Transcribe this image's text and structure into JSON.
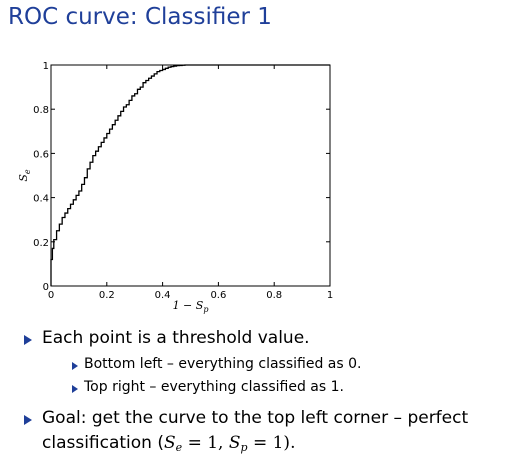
{
  "slide": {
    "title": "ROC curve: Classifier 1"
  },
  "bullets": {
    "b1": "Each point is a threshold value.",
    "b1_sub1": "Bottom left – everything classified as 0.",
    "b1_sub2": "Top right – everything classified as 1.",
    "b2_line1": "Goal: get the curve to the top left corner – perfect",
    "b2_line2_prefix": "classification (",
    "b2_se": "S",
    "b2_se_sub": "e",
    "b2_eq1": " = 1, ",
    "b2_sp": "S",
    "b2_sp_sub": "p",
    "b2_eq2": " = 1).",
    "colors": {
      "title": "#1f3f99",
      "bullet_marker": "#1f3f99"
    }
  },
  "chart_data": {
    "type": "line",
    "title": "",
    "xlabel": "1 − S",
    "xlabel_sub": "p",
    "ylabel": "S",
    "ylabel_sub": "e",
    "xlim": [
      0,
      1
    ],
    "ylim": [
      0,
      1
    ],
    "x_ticks": [
      0,
      0.2,
      0.4,
      0.6,
      0.8,
      1
    ],
    "x_tick_labels": [
      "0",
      "0.2",
      "0.4",
      "0.6",
      "0.8",
      "1"
    ],
    "y_ticks": [
      0,
      0.2,
      0.4,
      0.6,
      0.8,
      1
    ],
    "y_tick_labels": [
      "0",
      "0.2",
      "0.4",
      "0.6",
      "0.8",
      "1"
    ],
    "grid": false,
    "legend": "none",
    "line_style": "step",
    "line_color": "#000000",
    "series": [
      {
        "x": [
          0,
          0,
          0.005,
          0.01,
          0.02,
          0.03,
          0.04,
          0.05,
          0.06,
          0.07,
          0.08,
          0.09,
          0.1,
          0.11,
          0.12,
          0.13,
          0.14,
          0.15,
          0.16,
          0.17,
          0.18,
          0.19,
          0.2,
          0.21,
          0.22,
          0.23,
          0.24,
          0.25,
          0.26,
          0.27,
          0.28,
          0.29,
          0.3,
          0.31,
          0.32,
          0.33,
          0.34,
          0.35,
          0.36,
          0.37,
          0.38,
          0.39,
          0.4,
          0.41,
          0.42,
          0.43,
          0.44,
          0.45,
          0.46,
          0.47,
          0.48,
          0.5,
          0.53,
          0.6,
          0.7,
          0.8,
          0.9,
          1.0
        ],
        "y": [
          0,
          0.06,
          0.12,
          0.17,
          0.21,
          0.25,
          0.28,
          0.31,
          0.33,
          0.35,
          0.37,
          0.39,
          0.41,
          0.43,
          0.46,
          0.49,
          0.53,
          0.56,
          0.59,
          0.61,
          0.63,
          0.65,
          0.67,
          0.69,
          0.71,
          0.73,
          0.75,
          0.77,
          0.79,
          0.81,
          0.82,
          0.84,
          0.86,
          0.87,
          0.89,
          0.9,
          0.92,
          0.93,
          0.94,
          0.95,
          0.96,
          0.97,
          0.975,
          0.98,
          0.985,
          0.99,
          0.993,
          0.995,
          0.997,
          0.998,
          0.999,
          1.0,
          1.0,
          1.0,
          1.0,
          1.0,
          1.0,
          1.0
        ]
      }
    ]
  }
}
